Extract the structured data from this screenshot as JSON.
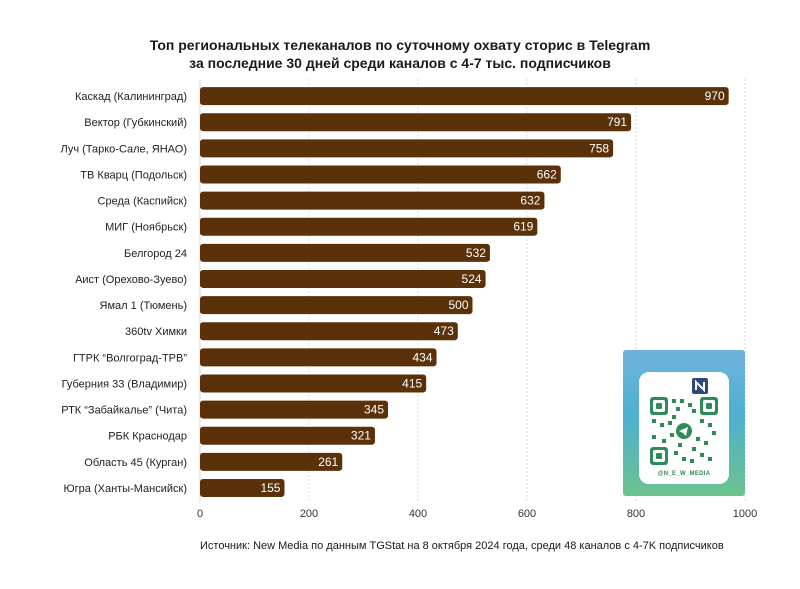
{
  "title_line1": "Топ региональных телеканалов по суточному охвату сторис в Telegram",
  "title_line2": "за последние 30 дней среди каналов с 4-7 тыс. подписчиков",
  "source": "Источник: New Media по данным TGStat на 8 октября 2024 года, среди 48 каналов с 4-7K подписчиков",
  "qr": {
    "handle": "@N_E_W_MEDIA",
    "logo_icon": "new-media-logo-icon"
  },
  "colors": {
    "bar": "#5a3109",
    "label_text": "#ffffff",
    "grid": "#d9d9d9"
  },
  "chart_data": {
    "type": "bar",
    "orientation": "horizontal",
    "categories": [
      "Каскад (Калининград)",
      "Вектор (Губкинский)",
      "Луч (Тарко-Сале, ЯНАО)",
      "ТВ Кварц (Подольск)",
      "Среда (Каспийск)",
      "МИГ (Ноябрьск)",
      "Белгород 24",
      "Аист (Орехово-Зуево)",
      "Ямал 1 (Тюмень)",
      "360tv Химки",
      "ГТРК “Волгоград-ТРВ”",
      "Губерния 33 (Владимир)",
      "РТК “Забайкалье” (Чита)",
      "РБК Краснодар",
      "Область 45 (Курган)",
      "Югра (Ханты-Мансийск)"
    ],
    "values": [
      970,
      791,
      758,
      662,
      632,
      619,
      532,
      524,
      500,
      473,
      434,
      415,
      345,
      321,
      261,
      155
    ],
    "xlim": [
      0,
      1000
    ],
    "xticks": [
      0,
      200,
      400,
      600,
      800,
      1000
    ],
    "grid": "vertical",
    "data_labels": true
  }
}
